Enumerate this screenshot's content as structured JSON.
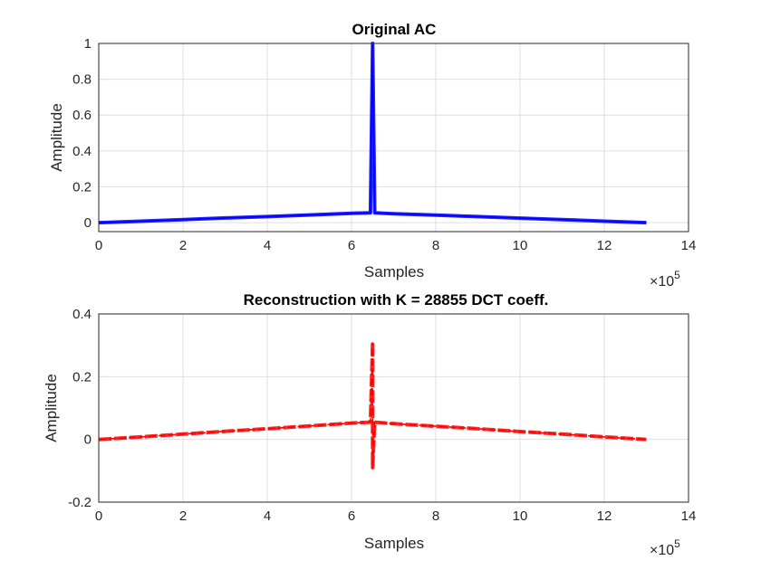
{
  "chart_data": [
    {
      "type": "line",
      "title": "Original AC",
      "xlabel": "Samples",
      "ylabel": "Amplitude",
      "x_multiplier": "×10",
      "x_multiplier_exp": "5",
      "xlim": [
        0,
        14
      ],
      "ylim": [
        -0.05,
        1
      ],
      "xticks": [
        "0",
        "2",
        "4",
        "6",
        "8",
        "10",
        "12",
        "14"
      ],
      "yticks": [
        "0",
        "0.2",
        "0.4",
        "0.6",
        "0.8",
        "1"
      ],
      "grid": true,
      "color": "#0000ff",
      "line_style": "solid",
      "series": [
        {
          "x": [
            0,
            1,
            2,
            3,
            4,
            5,
            6,
            6.45,
            6.5,
            6.55,
            7,
            8,
            9,
            10,
            11,
            12,
            13,
            13
          ],
          "y": [
            0,
            0.008,
            0.017,
            0.026,
            0.034,
            0.043,
            0.052,
            0.055,
            1.0,
            0.055,
            0.05,
            0.042,
            0.034,
            0.025,
            0.017,
            0.008,
            0.0,
            0.0
          ]
        }
      ]
    },
    {
      "type": "line",
      "title": "Reconstruction with K = 28855 DCT coeff.",
      "xlabel": "Samples",
      "ylabel": "Amplitude",
      "x_multiplier": "×10",
      "x_multiplier_exp": "5",
      "xlim": [
        0,
        14
      ],
      "ylim": [
        -0.2,
        0.4
      ],
      "xticks": [
        "0",
        "2",
        "4",
        "6",
        "8",
        "10",
        "12",
        "14"
      ],
      "yticks": [
        "-0.2",
        "0",
        "0.2",
        "0.4"
      ],
      "grid": true,
      "color": "#ff0000",
      "line_style": "dashed",
      "series": [
        {
          "x": [
            0,
            1,
            2,
            3,
            4,
            5,
            6,
            6.45,
            6.5,
            6.5,
            6.55,
            7,
            8,
            9,
            10,
            11,
            12,
            13
          ],
          "y": [
            0,
            0.008,
            0.017,
            0.026,
            0.034,
            0.043,
            0.052,
            0.055,
            0.31,
            -0.09,
            0.055,
            0.05,
            0.042,
            0.034,
            0.025,
            0.017,
            0.008,
            0.0
          ]
        }
      ]
    }
  ]
}
